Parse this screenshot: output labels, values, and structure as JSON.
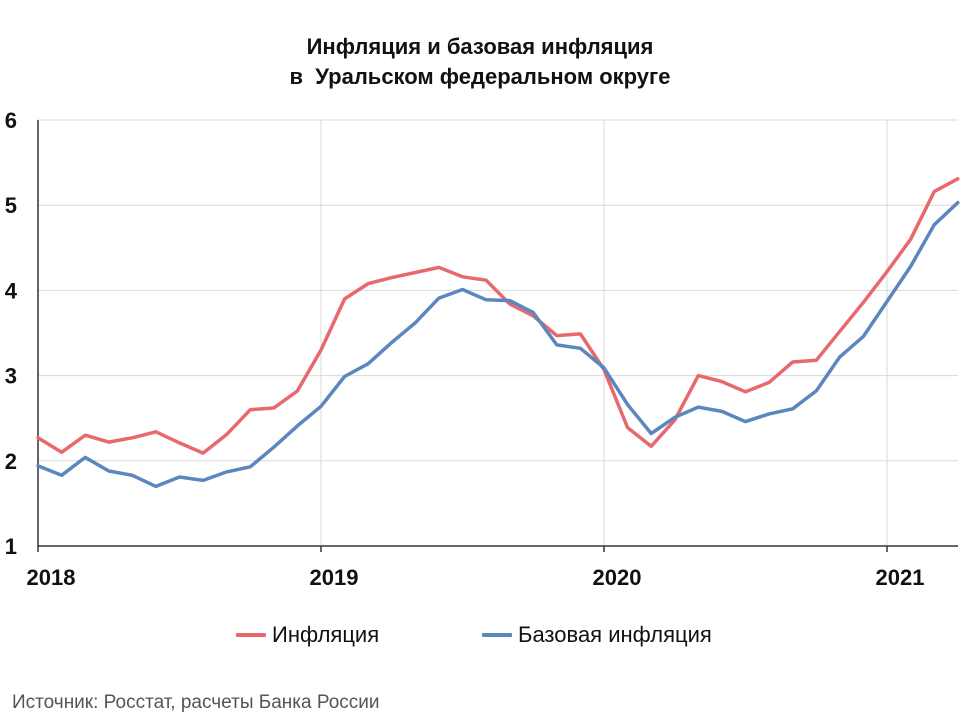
{
  "chart_data": {
    "type": "line",
    "title_line1": "Инфляция и базовая инфляция",
    "title_line2": "в  Уральском федеральном округе",
    "xlabel": "",
    "ylabel": "",
    "ylim": [
      1,
      6
    ],
    "yticks": [
      "1",
      "2",
      "3",
      "4",
      "5",
      "6"
    ],
    "xticks": [
      "2018",
      "2019",
      "2020",
      "2021"
    ],
    "x_start": "2018-01",
    "grid": true,
    "legend_position": "bottom",
    "series": [
      {
        "name": "Инфляция",
        "color": "#e8696d",
        "values": [
          2.27,
          2.1,
          2.3,
          2.22,
          2.27,
          2.34,
          2.21,
          2.09,
          2.31,
          2.6,
          2.62,
          2.82,
          3.3,
          3.9,
          4.08,
          4.15,
          4.21,
          4.27,
          4.16,
          4.12,
          3.84,
          3.7,
          3.47,
          3.49,
          3.07,
          2.39,
          2.17,
          2.48,
          3.0,
          2.93,
          2.81,
          2.92,
          3.16,
          3.18,
          3.52,
          3.86,
          4.22,
          4.6,
          5.16,
          5.31
        ]
      },
      {
        "name": "Базовая инфляция",
        "color": "#5b87be",
        "values": [
          1.94,
          1.83,
          2.04,
          1.88,
          1.83,
          1.7,
          1.81,
          1.77,
          1.87,
          1.93,
          2.16,
          2.41,
          2.64,
          2.99,
          3.14,
          3.39,
          3.62,
          3.91,
          4.01,
          3.89,
          3.88,
          3.74,
          3.36,
          3.32,
          3.09,
          2.66,
          2.32,
          2.51,
          2.63,
          2.58,
          2.46,
          2.55,
          2.61,
          2.82,
          3.22,
          3.46,
          3.87,
          4.28,
          4.77,
          5.03
        ]
      }
    ]
  },
  "source_text": "Источник: Росстат, расчеты Банка России"
}
